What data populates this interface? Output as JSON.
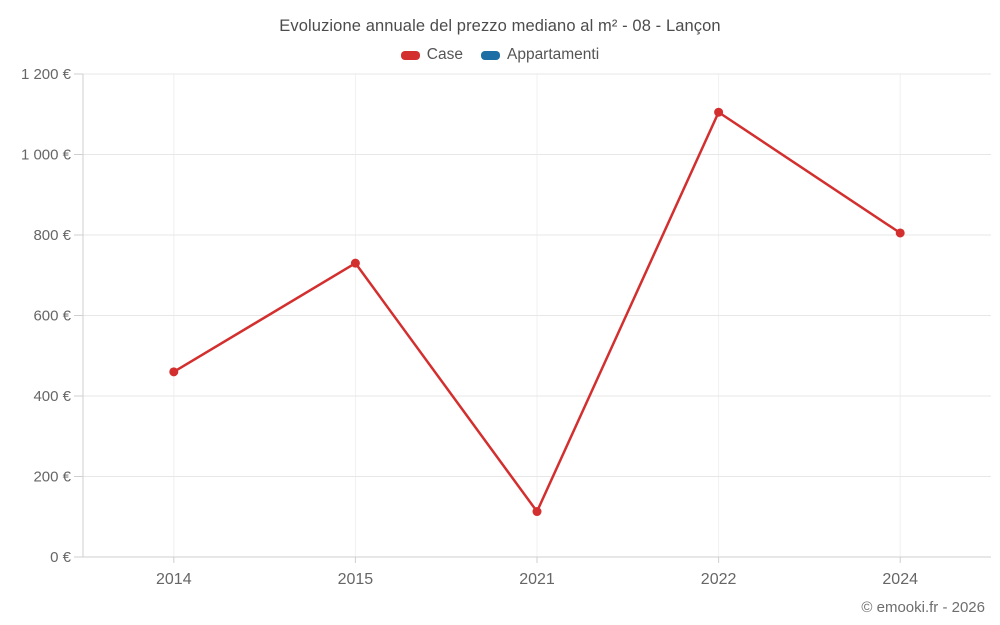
{
  "header": {
    "title": "Evoluzione annuale del prezzo mediano al m² - 08 - Lançon"
  },
  "footer": {
    "credit": "© emooki.fr - 2026"
  },
  "colors": {
    "case_series": "#d32f2f",
    "appartamenti_series": "#1c6ea4",
    "grid_horizontal": "#e7e7e7",
    "grid_vertical": "#f0f0f0",
    "axis": "#cfcfcf",
    "tick": "#cfcfcf",
    "title_text": "#4c4c4c",
    "legend_text": "#555555",
    "axis_text": "#666666",
    "footer_text": "#6e6e6e",
    "background": "#ffffff"
  },
  "chart_data": {
    "type": "line",
    "title": "Evoluzione annuale del prezzo mediano al m² - 08 - Lançon",
    "categories": [
      "2014",
      "2015",
      "2021",
      "2022",
      "2024"
    ],
    "series": [
      {
        "name": "Case",
        "color": "#d32f2f",
        "values": [
          460,
          730,
          113,
          1105,
          805
        ]
      },
      {
        "name": "Appartamenti",
        "color": "#1c6ea4",
        "values": []
      }
    ],
    "xlabel": "",
    "ylabel": "",
    "ylim": [
      0,
      1200
    ],
    "ytick_step": 200,
    "ytick_labels": [
      "0 €",
      "200 €",
      "400 €",
      "600 €",
      "800 €",
      "1 000 €",
      "1 200 €"
    ],
    "currency": "€",
    "grid": true,
    "legend_position": "top",
    "marker": "circle"
  }
}
